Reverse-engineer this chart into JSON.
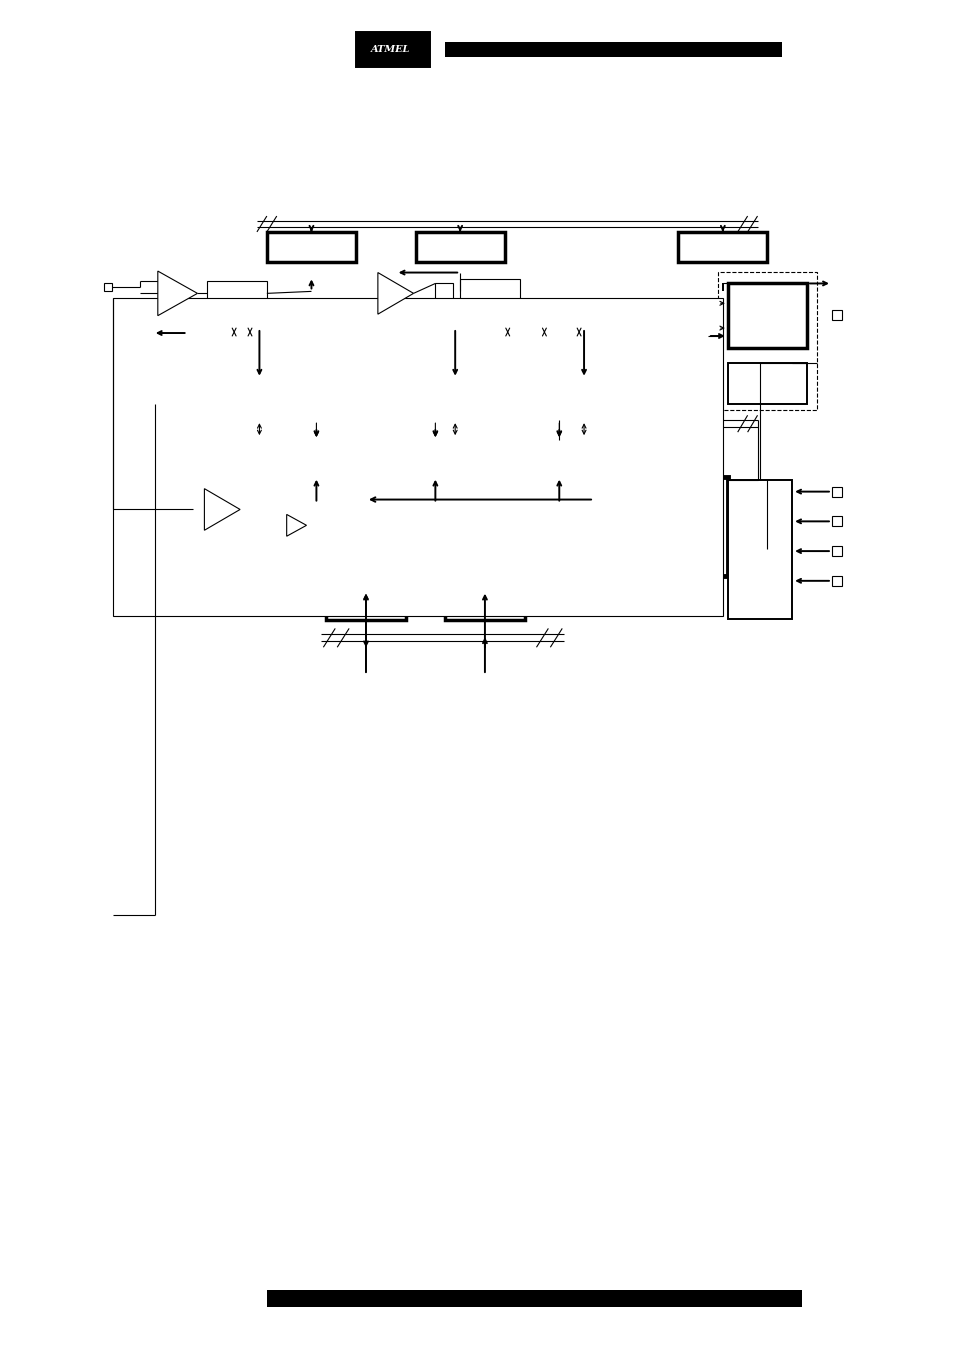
{
  "fig_width": 9.54,
  "fig_height": 13.51,
  "bg_color": "#ffffff",
  "lw_thin": 0.8,
  "lw_med": 1.4,
  "lw_thick": 2.5,
  "lw_vthick": 3.5
}
